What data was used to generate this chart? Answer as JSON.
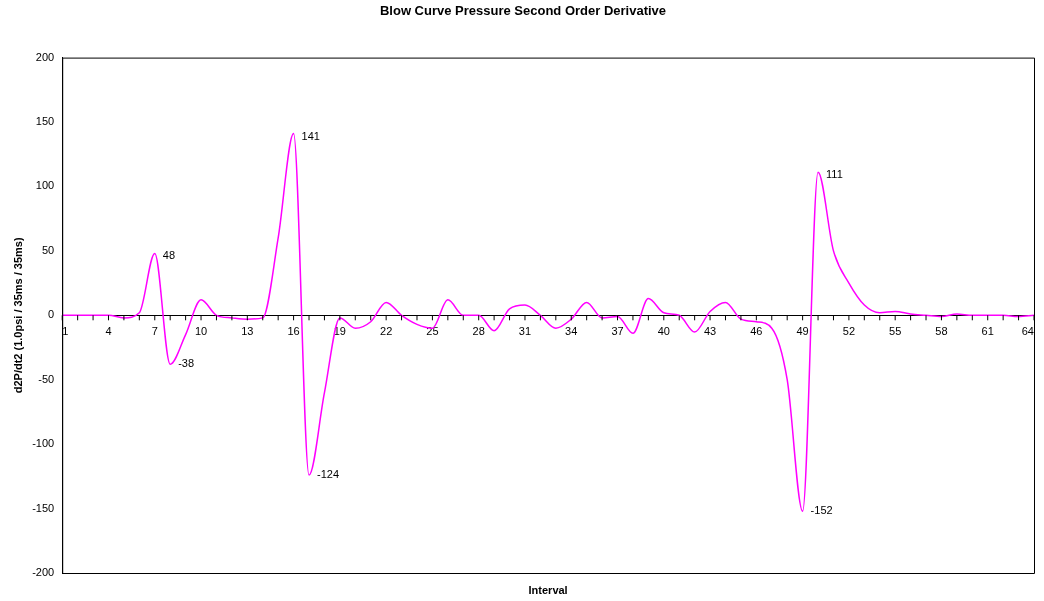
{
  "chart_data": {
    "type": "line",
    "title": "Blow Curve Pressure Second Order Derivative",
    "xlabel": "Interval",
    "ylabel": "d2P/dt2 (1.0psi / 35ms / 35ms)",
    "categories": [
      "1",
      null,
      null,
      "4",
      null,
      null,
      "7",
      null,
      null,
      "10",
      null,
      null,
      "13",
      null,
      null,
      "16",
      null,
      null,
      "19",
      null,
      null,
      "22",
      null,
      null,
      "25",
      null,
      null,
      "28",
      null,
      null,
      "31",
      null,
      null,
      "34",
      null,
      null,
      "37",
      null,
      null,
      "40",
      null,
      null,
      "43",
      null,
      null,
      "46",
      null,
      null,
      "49",
      null,
      null,
      "52",
      null,
      null,
      "55",
      null,
      null,
      "58",
      null,
      null,
      "61",
      null,
      null,
      "64"
    ],
    "series": [
      {
        "color": "#ff00ff",
        "values": [
          0,
          0,
          0,
          0,
          -2,
          2,
          48,
          -38,
          -15,
          12,
          0,
          -2,
          -3,
          -2,
          60,
          141,
          -124,
          -60,
          -2,
          -10,
          -5,
          10,
          0,
          -7,
          -10,
          12,
          0,
          0,
          -12,
          5,
          8,
          0,
          -10,
          -3,
          10,
          -2,
          -1,
          -14,
          13,
          2,
          0,
          -13,
          3,
          10,
          -3,
          -5,
          -10,
          -50,
          -152,
          111,
          50,
          25,
          8,
          2,
          3,
          1,
          0,
          -1,
          1,
          0,
          0,
          0,
          -1,
          0
        ],
        "value_labels": [
          null,
          null,
          null,
          null,
          null,
          null,
          "48",
          "-38",
          null,
          null,
          null,
          null,
          null,
          null,
          null,
          "141",
          "-124",
          null,
          null,
          null,
          null,
          null,
          null,
          null,
          null,
          null,
          null,
          null,
          null,
          null,
          null,
          null,
          null,
          null,
          null,
          null,
          null,
          null,
          null,
          null,
          null,
          null,
          null,
          null,
          null,
          null,
          null,
          null,
          "-152",
          "111",
          null,
          null,
          null,
          null,
          null,
          null,
          null,
          null,
          null,
          null,
          null,
          null,
          null,
          null
        ]
      }
    ],
    "ylim": [
      -200,
      200
    ],
    "yticks": [
      -200,
      -150,
      -100,
      -50,
      0,
      50,
      100,
      150,
      200
    ],
    "grid": false,
    "legend": false,
    "marker": "none",
    "line_style": "solid"
  }
}
